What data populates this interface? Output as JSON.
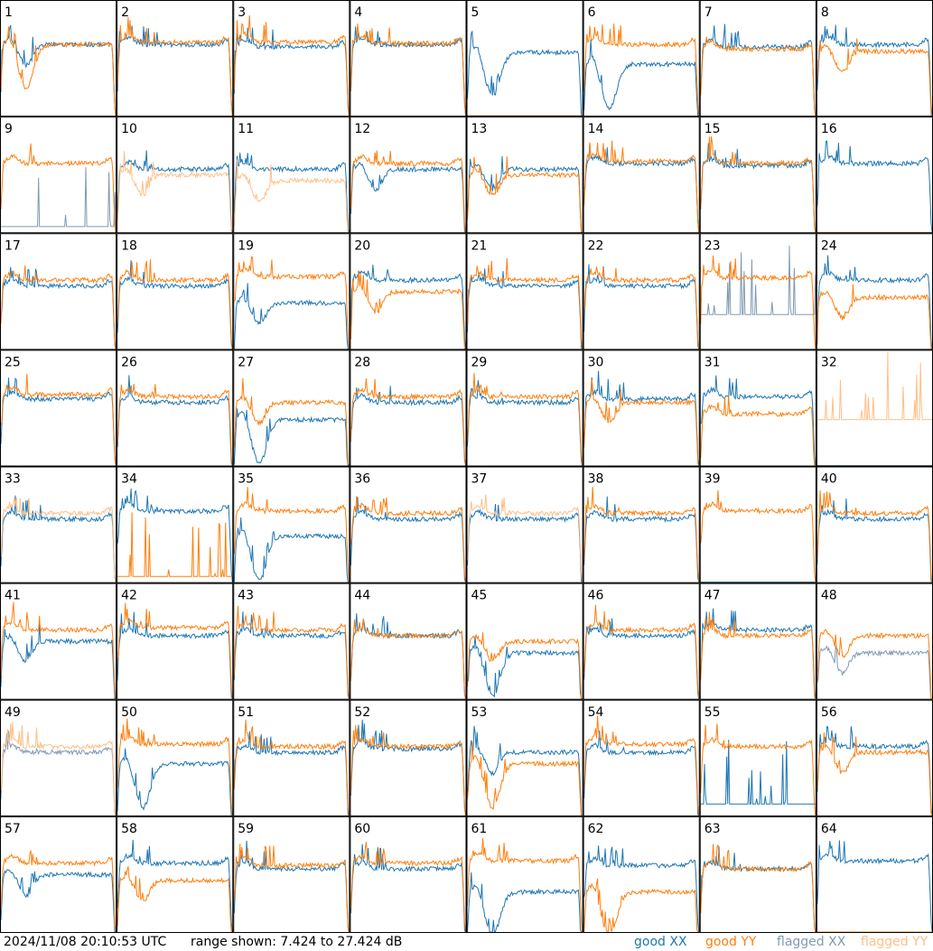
{
  "footer": {
    "timestamp": "2024/11/08 20:10:53 UTC",
    "range_text": "range shown: 7.424 to 27.424 dB",
    "legend": {
      "good_xx": "good XX",
      "good_yy": "good YY",
      "flagged_xx": "flagged XX",
      "flagged_yy": "flagged YY"
    }
  },
  "colors": {
    "good_xx": "#1f77b4",
    "good_yy": "#ff7f0e",
    "flagged_xx": "#7f9ab4",
    "flagged_yy": "#ffbf87",
    "frame": "#000000",
    "background": "#ffffff"
  },
  "chart_data": {
    "type": "line",
    "grid": {
      "rows": 8,
      "cols": 8
    },
    "ylim": [
      7.424,
      27.424
    ],
    "yunit": "dB",
    "panels": [
      {
        "id": "1",
        "xx": {
          "status": "good",
          "level": 0.62,
          "shape": "dip"
        },
        "yy": {
          "status": "good",
          "level": 0.62,
          "shape": "deepdip"
        }
      },
      {
        "id": "2",
        "xx": {
          "status": "good",
          "level": 0.62,
          "shape": "flat"
        },
        "yy": {
          "status": "good",
          "level": 0.64,
          "shape": "flat"
        }
      },
      {
        "id": "3",
        "xx": {
          "status": "good",
          "level": 0.6,
          "shape": "flat"
        },
        "yy": {
          "status": "good",
          "level": 0.64,
          "shape": "flat"
        }
      },
      {
        "id": "4",
        "xx": {
          "status": "good",
          "level": 0.62,
          "shape": "flat"
        },
        "yy": {
          "status": "good",
          "level": 0.63,
          "shape": "flat"
        }
      },
      {
        "id": "5",
        "xx": {
          "status": "good",
          "level": 0.55,
          "shape": "deepdip"
        },
        "yy": {
          "status": "good",
          "level": 0.0,
          "shape": "zero"
        }
      },
      {
        "id": "6",
        "xx": {
          "status": "good",
          "level": 0.45,
          "shape": "deepdip"
        },
        "yy": {
          "status": "good",
          "level": 0.62,
          "shape": "flat"
        }
      },
      {
        "id": "7",
        "xx": {
          "status": "good",
          "level": 0.6,
          "shape": "flat"
        },
        "yy": {
          "status": "good",
          "level": 0.58,
          "shape": "flat"
        }
      },
      {
        "id": "8",
        "xx": {
          "status": "good",
          "level": 0.62,
          "shape": "flat"
        },
        "yy": {
          "status": "good",
          "level": 0.56,
          "shape": "dip"
        }
      },
      {
        "id": "9",
        "xx": {
          "status": "flagged",
          "level": 0.05,
          "shape": "spiky"
        },
        "yy": {
          "status": "good",
          "level": 0.6,
          "shape": "flat"
        }
      },
      {
        "id": "10",
        "xx": {
          "status": "good",
          "level": 0.55,
          "shape": "flat"
        },
        "yy": {
          "status": "flagged",
          "level": 0.5,
          "shape": "dip"
        }
      },
      {
        "id": "11",
        "xx": {
          "status": "good",
          "level": 0.55,
          "shape": "flat"
        },
        "yy": {
          "status": "flagged",
          "level": 0.45,
          "shape": "dip"
        }
      },
      {
        "id": "12",
        "xx": {
          "status": "good",
          "level": 0.55,
          "shape": "dip"
        },
        "yy": {
          "status": "good",
          "level": 0.6,
          "shape": "flat"
        }
      },
      {
        "id": "13",
        "xx": {
          "status": "good",
          "level": 0.55,
          "shape": "dip"
        },
        "yy": {
          "status": "good",
          "level": 0.5,
          "shape": "dip"
        }
      },
      {
        "id": "14",
        "xx": {
          "status": "good",
          "level": 0.6,
          "shape": "flat"
        },
        "yy": {
          "status": "good",
          "level": 0.62,
          "shape": "flat"
        }
      },
      {
        "id": "15",
        "xx": {
          "status": "good",
          "level": 0.58,
          "shape": "flat"
        },
        "yy": {
          "status": "good",
          "level": 0.6,
          "shape": "flat"
        }
      },
      {
        "id": "16",
        "xx": {
          "status": "good",
          "level": 0.6,
          "shape": "flat"
        },
        "yy": {
          "status": "flagged",
          "level": 0.0,
          "shape": "zero"
        }
      },
      {
        "id": "17",
        "xx": {
          "status": "good",
          "level": 0.55,
          "shape": "flat"
        },
        "yy": {
          "status": "good",
          "level": 0.6,
          "shape": "flat"
        }
      },
      {
        "id": "18",
        "xx": {
          "status": "good",
          "level": 0.55,
          "shape": "flat"
        },
        "yy": {
          "status": "good",
          "level": 0.6,
          "shape": "flat"
        }
      },
      {
        "id": "19",
        "xx": {
          "status": "good",
          "level": 0.4,
          "shape": "dip"
        },
        "yy": {
          "status": "good",
          "level": 0.63,
          "shape": "flat"
        }
      },
      {
        "id": "20",
        "xx": {
          "status": "good",
          "level": 0.6,
          "shape": "flat"
        },
        "yy": {
          "status": "good",
          "level": 0.5,
          "shape": "dip"
        }
      },
      {
        "id": "21",
        "xx": {
          "status": "good",
          "level": 0.55,
          "shape": "flat"
        },
        "yy": {
          "status": "good",
          "level": 0.6,
          "shape": "flat"
        }
      },
      {
        "id": "22",
        "xx": {
          "status": "good",
          "level": 0.55,
          "shape": "flat"
        },
        "yy": {
          "status": "good",
          "level": 0.6,
          "shape": "flat"
        }
      },
      {
        "id": "23",
        "xx": {
          "status": "flagged",
          "level": 0.3,
          "shape": "spiky"
        },
        "yy": {
          "status": "good",
          "level": 0.62,
          "shape": "flat"
        }
      },
      {
        "id": "24",
        "xx": {
          "status": "good",
          "level": 0.6,
          "shape": "flat"
        },
        "yy": {
          "status": "good",
          "level": 0.45,
          "shape": "dip"
        }
      },
      {
        "id": "25",
        "xx": {
          "status": "good",
          "level": 0.58,
          "shape": "flat"
        },
        "yy": {
          "status": "good",
          "level": 0.62,
          "shape": "flat"
        }
      },
      {
        "id": "26",
        "xx": {
          "status": "good",
          "level": 0.55,
          "shape": "flat"
        },
        "yy": {
          "status": "good",
          "level": 0.6,
          "shape": "flat"
        }
      },
      {
        "id": "27",
        "xx": {
          "status": "good",
          "level": 0.4,
          "shape": "deepdip"
        },
        "yy": {
          "status": "good",
          "level": 0.55,
          "shape": "dip"
        }
      },
      {
        "id": "28",
        "xx": {
          "status": "good",
          "level": 0.55,
          "shape": "flat"
        },
        "yy": {
          "status": "good",
          "level": 0.6,
          "shape": "flat"
        }
      },
      {
        "id": "29",
        "xx": {
          "status": "good",
          "level": 0.55,
          "shape": "flat"
        },
        "yy": {
          "status": "good",
          "level": 0.6,
          "shape": "flat"
        }
      },
      {
        "id": "30",
        "xx": {
          "status": "good",
          "level": 0.58,
          "shape": "flat"
        },
        "yy": {
          "status": "good",
          "level": 0.55,
          "shape": "dip"
        }
      },
      {
        "id": "31",
        "xx": {
          "status": "good",
          "level": 0.6,
          "shape": "flat"
        },
        "yy": {
          "status": "good",
          "level": 0.45,
          "shape": "flat"
        }
      },
      {
        "id": "32",
        "xx": {
          "status": "flagged",
          "level": 0.0,
          "shape": "zero"
        },
        "yy": {
          "status": "flagged",
          "level": 0.4,
          "shape": "spiky"
        }
      },
      {
        "id": "33",
        "xx": {
          "status": "good",
          "level": 0.55,
          "shape": "flat"
        },
        "yy": {
          "status": "flagged",
          "level": 0.6,
          "shape": "flat"
        }
      },
      {
        "id": "34",
        "xx": {
          "status": "good",
          "level": 0.62,
          "shape": "flat"
        },
        "yy": {
          "status": "good",
          "level": 0.05,
          "shape": "spiky"
        }
      },
      {
        "id": "35",
        "xx": {
          "status": "good",
          "level": 0.4,
          "shape": "deepdip"
        },
        "yy": {
          "status": "good",
          "level": 0.62,
          "shape": "flat"
        }
      },
      {
        "id": "36",
        "xx": {
          "status": "good",
          "level": 0.55,
          "shape": "flat"
        },
        "yy": {
          "status": "good",
          "level": 0.6,
          "shape": "flat"
        }
      },
      {
        "id": "37",
        "xx": {
          "status": "good",
          "level": 0.55,
          "shape": "flat"
        },
        "yy": {
          "status": "flagged",
          "level": 0.6,
          "shape": "flat"
        }
      },
      {
        "id": "38",
        "xx": {
          "status": "good",
          "level": 0.55,
          "shape": "flat"
        },
        "yy": {
          "status": "good",
          "level": 0.6,
          "shape": "flat"
        }
      },
      {
        "id": "39",
        "xx": {
          "status": "good",
          "level": 0.0,
          "shape": "zero"
        },
        "yy": {
          "status": "good",
          "level": 0.62,
          "shape": "flat"
        }
      },
      {
        "id": "40",
        "xx": {
          "status": "good",
          "level": 0.55,
          "shape": "flat"
        },
        "yy": {
          "status": "good",
          "level": 0.6,
          "shape": "flat"
        }
      },
      {
        "id": "41",
        "xx": {
          "status": "good",
          "level": 0.5,
          "shape": "dip"
        },
        "yy": {
          "status": "good",
          "level": 0.6,
          "shape": "flat"
        }
      },
      {
        "id": "42",
        "xx": {
          "status": "good",
          "level": 0.55,
          "shape": "flat"
        },
        "yy": {
          "status": "good",
          "level": 0.62,
          "shape": "flat"
        }
      },
      {
        "id": "43",
        "xx": {
          "status": "good",
          "level": 0.55,
          "shape": "flat"
        },
        "yy": {
          "status": "good",
          "level": 0.6,
          "shape": "flat"
        }
      },
      {
        "id": "44",
        "xx": {
          "status": "good",
          "level": 0.55,
          "shape": "flat"
        },
        "yy": {
          "status": "good",
          "level": 0.55,
          "shape": "flat"
        }
      },
      {
        "id": "45",
        "xx": {
          "status": "good",
          "level": 0.4,
          "shape": "deepdip"
        },
        "yy": {
          "status": "good",
          "level": 0.5,
          "shape": "dip"
        }
      },
      {
        "id": "46",
        "xx": {
          "status": "good",
          "level": 0.55,
          "shape": "flat"
        },
        "yy": {
          "status": "good",
          "level": 0.6,
          "shape": "flat"
        }
      },
      {
        "id": "47",
        "xx": {
          "status": "good",
          "level": 0.6,
          "shape": "flat"
        },
        "yy": {
          "status": "good",
          "level": 0.55,
          "shape": "flat"
        }
      },
      {
        "id": "48",
        "xx": {
          "status": "flagged",
          "level": 0.4,
          "shape": "dip"
        },
        "yy": {
          "status": "good",
          "level": 0.55,
          "shape": "dip"
        }
      },
      {
        "id": "49",
        "xx": {
          "status": "flagged",
          "level": 0.55,
          "shape": "flat"
        },
        "yy": {
          "status": "flagged",
          "level": 0.6,
          "shape": "flat"
        }
      },
      {
        "id": "50",
        "xx": {
          "status": "good",
          "level": 0.45,
          "shape": "deepdip"
        },
        "yy": {
          "status": "good",
          "level": 0.62,
          "shape": "flat"
        }
      },
      {
        "id": "51",
        "xx": {
          "status": "good",
          "level": 0.55,
          "shape": "flat"
        },
        "yy": {
          "status": "good",
          "level": 0.6,
          "shape": "flat"
        }
      },
      {
        "id": "52",
        "xx": {
          "status": "good",
          "level": 0.58,
          "shape": "flat"
        },
        "yy": {
          "status": "good",
          "level": 0.6,
          "shape": "flat"
        }
      },
      {
        "id": "53",
        "xx": {
          "status": "good",
          "level": 0.55,
          "shape": "dip"
        },
        "yy": {
          "status": "good",
          "level": 0.45,
          "shape": "deepdip"
        }
      },
      {
        "id": "54",
        "xx": {
          "status": "good",
          "level": 0.55,
          "shape": "flat"
        },
        "yy": {
          "status": "good",
          "level": 0.62,
          "shape": "flat"
        }
      },
      {
        "id": "55",
        "xx": {
          "status": "good",
          "level": 0.1,
          "shape": "spiky"
        },
        "yy": {
          "status": "good",
          "level": 0.6,
          "shape": "flat"
        }
      },
      {
        "id": "56",
        "xx": {
          "status": "good",
          "level": 0.6,
          "shape": "flat"
        },
        "yy": {
          "status": "good",
          "level": 0.55,
          "shape": "dip"
        }
      },
      {
        "id": "57",
        "xx": {
          "status": "good",
          "level": 0.5,
          "shape": "dip"
        },
        "yy": {
          "status": "good",
          "level": 0.6,
          "shape": "flat"
        }
      },
      {
        "id": "58",
        "xx": {
          "status": "good",
          "level": 0.6,
          "shape": "flat"
        },
        "yy": {
          "status": "good",
          "level": 0.45,
          "shape": "dip"
        }
      },
      {
        "id": "59",
        "xx": {
          "status": "good",
          "level": 0.55,
          "shape": "flat"
        },
        "yy": {
          "status": "good",
          "level": 0.58,
          "shape": "flat"
        }
      },
      {
        "id": "60",
        "xx": {
          "status": "good",
          "level": 0.55,
          "shape": "flat"
        },
        "yy": {
          "status": "good",
          "level": 0.6,
          "shape": "flat"
        }
      },
      {
        "id": "61",
        "xx": {
          "status": "good",
          "level": 0.35,
          "shape": "deepdip"
        },
        "yy": {
          "status": "good",
          "level": 0.62,
          "shape": "flat"
        }
      },
      {
        "id": "62",
        "xx": {
          "status": "good",
          "level": 0.58,
          "shape": "flat"
        },
        "yy": {
          "status": "good",
          "level": 0.35,
          "shape": "deepdip"
        }
      },
      {
        "id": "63",
        "xx": {
          "status": "good",
          "level": 0.55,
          "shape": "flat"
        },
        "yy": {
          "status": "good",
          "level": 0.55,
          "shape": "flat"
        }
      },
      {
        "id": "64",
        "xx": {
          "status": "good",
          "level": 0.62,
          "shape": "flat"
        },
        "yy": {
          "status": "good",
          "level": 0.0,
          "shape": "zero"
        }
      }
    ]
  }
}
